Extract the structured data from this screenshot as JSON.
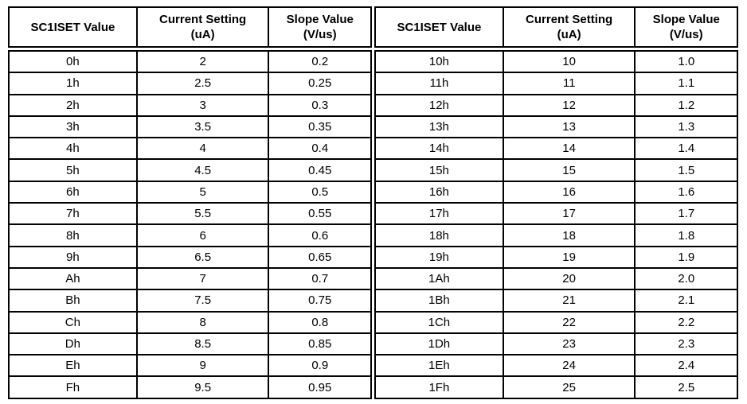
{
  "page": {
    "background_color": "#ffffff",
    "border_color": "#000000",
    "text_color": "#000000"
  },
  "tables": [
    {
      "title": "sc1iset-slope-table-left",
      "headers": [
        "SC1ISET Value",
        "Current Setting\n(uA)",
        "Slope Value\n(V/us)"
      ],
      "rows": [
        [
          "0h",
          "2",
          "0.2"
        ],
        [
          "1h",
          "2.5",
          "0.25"
        ],
        [
          "2h",
          "3",
          "0.3"
        ],
        [
          "3h",
          "3.5",
          "0.35"
        ],
        [
          "4h",
          "4",
          "0.4"
        ],
        [
          "5h",
          "4.5",
          "0.45"
        ],
        [
          "6h",
          "5",
          "0.5"
        ],
        [
          "7h",
          "5.5",
          "0.55"
        ],
        [
          "8h",
          "6",
          "0.6"
        ],
        [
          "9h",
          "6.5",
          "0.65"
        ],
        [
          "Ah",
          "7",
          "0.7"
        ],
        [
          "Bh",
          "7.5",
          "0.75"
        ],
        [
          "Ch",
          "8",
          "0.8"
        ],
        [
          "Dh",
          "8.5",
          "0.85"
        ],
        [
          "Eh",
          "9",
          "0.9"
        ],
        [
          "Fh",
          "9.5",
          "0.95"
        ]
      ]
    },
    {
      "title": "sc1iset-slope-table-right",
      "headers": [
        "SC1ISET Value",
        "Current Setting\n(uA)",
        "Slope Value\n(V/us)"
      ],
      "rows": [
        [
          "10h",
          "10",
          "1.0"
        ],
        [
          "11h",
          "11",
          "1.1"
        ],
        [
          "12h",
          "12",
          "1.2"
        ],
        [
          "13h",
          "13",
          "1.3"
        ],
        [
          "14h",
          "14",
          "1.4"
        ],
        [
          "15h",
          "15",
          "1.5"
        ],
        [
          "16h",
          "16",
          "1.6"
        ],
        [
          "17h",
          "17",
          "1.7"
        ],
        [
          "18h",
          "18",
          "1.8"
        ],
        [
          "19h",
          "19",
          "1.9"
        ],
        [
          "1Ah",
          "20",
          "2.0"
        ],
        [
          "1Bh",
          "21",
          "2.1"
        ],
        [
          "1Ch",
          "22",
          "2.2"
        ],
        [
          "1Dh",
          "23",
          "2.3"
        ],
        [
          "1Eh",
          "24",
          "2.4"
        ],
        [
          "1Fh",
          "25",
          "2.5"
        ]
      ]
    }
  ]
}
